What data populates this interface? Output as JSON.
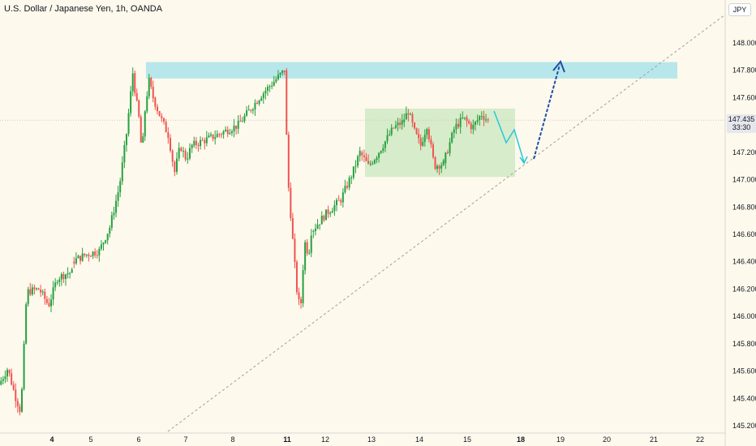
{
  "title": "U.S. Dollar / Japanese Yen, 1h, OANDA",
  "currency": "JPY",
  "last_price": "147.435",
  "countdown": "33:30",
  "colors": {
    "background": "#fdf9ec",
    "up": "#26a040",
    "down": "#ef5350",
    "resistance_zone": "#9fe0ea",
    "range_box": "#cde8c2",
    "path_down": "#26c6da",
    "path_up": "#1e4fa8",
    "trendline": "#9e9e9e"
  },
  "chart_data": {
    "type": "candlestick",
    "y_ticks": [
      "148.000",
      "147.800",
      "147.600",
      "147.400",
      "147.200",
      "147.000",
      "146.800",
      "146.600",
      "146.400",
      "146.200",
      "146.000",
      "145.800",
      "145.600",
      "145.400",
      "145.200"
    ],
    "x_ticks": [
      "4",
      "5",
      "6",
      "7",
      "8",
      "11",
      "12",
      "13",
      "14",
      "15",
      "18",
      "19",
      "20",
      "21",
      "22"
    ],
    "bold_x_ticks": [
      "4",
      "11",
      "18"
    ],
    "ylim": [
      145.18,
      148.22
    ],
    "days": [
      {
        "label": "4",
        "trend": [
          [
            0,
            145.5
          ],
          [
            0.12,
            145.62
          ],
          [
            0.22,
            145.42
          ],
          [
            0.3,
            145.3
          ],
          [
            0.38,
            146.18
          ],
          [
            0.55,
            146.2
          ],
          [
            0.68,
            146.08
          ],
          [
            0.8,
            146.28
          ],
          [
            0.95,
            146.32
          ]
        ]
      },
      {
        "label": "5",
        "trend": [
          [
            0,
            146.4
          ],
          [
            0.22,
            146.45
          ],
          [
            0.45,
            146.48
          ],
          [
            0.62,
            146.65
          ],
          [
            0.78,
            146.95
          ],
          [
            0.9,
            147.35
          ],
          [
            1,
            147.78
          ]
        ]
      },
      {
        "label": "6",
        "trend": [
          [
            0,
            147.78
          ],
          [
            0.15,
            147.6
          ],
          [
            0.3,
            147.45
          ],
          [
            0.45,
            147.18
          ],
          [
            0.62,
            147.55
          ],
          [
            0.8,
            147.72
          ],
          [
            1,
            147.6
          ]
        ]
      },
      {
        "label": "7",
        "trend": [
          [
            0,
            147.6
          ],
          [
            0.2,
            147.45
          ],
          [
            0.4,
            147.32
          ],
          [
            0.55,
            147.05
          ],
          [
            0.7,
            147.25
          ],
          [
            0.85,
            147.15
          ],
          [
            1,
            147.25
          ]
        ]
      },
      {
        "label": "8",
        "trend": [
          [
            0,
            147.25
          ],
          [
            0.25,
            147.32
          ],
          [
            0.5,
            147.4
          ],
          [
            0.75,
            147.62
          ],
          [
            1,
            147.8
          ]
        ]
      },
      {
        "label": "11",
        "trend": [
          [
            0,
            147.8
          ],
          [
            0.05,
            147.45
          ],
          [
            0.15,
            146.95
          ],
          [
            0.35,
            146.45
          ],
          [
            0.48,
            146.15
          ],
          [
            0.6,
            146.05
          ],
          [
            0.75,
            146.55
          ],
          [
            0.9,
            146.45
          ],
          [
            1,
            146.62
          ]
        ]
      },
      {
        "label": "12",
        "trend": [
          [
            0,
            146.62
          ],
          [
            0.3,
            146.75
          ],
          [
            0.6,
            146.85
          ],
          [
            0.85,
            147.05
          ],
          [
            1,
            147.2
          ]
        ]
      },
      {
        "label": "13",
        "trend": [
          [
            0,
            147.2
          ],
          [
            0.2,
            147.1
          ],
          [
            0.4,
            147.18
          ],
          [
            0.6,
            147.28
          ],
          [
            0.8,
            147.38
          ],
          [
            1,
            147.42
          ]
        ]
      },
      {
        "label": "14",
        "trend": [
          [
            0,
            147.42
          ],
          [
            0.15,
            147.5
          ],
          [
            0.3,
            147.35
          ],
          [
            0.45,
            147.25
          ],
          [
            0.6,
            147.4
          ],
          [
            0.78,
            147.1
          ],
          [
            1,
            147.12
          ]
        ]
      },
      {
        "label": "15",
        "trend": [
          [
            0,
            147.12
          ],
          [
            0.25,
            147.38
          ],
          [
            0.45,
            147.45
          ],
          [
            0.65,
            147.38
          ],
          [
            0.85,
            147.48
          ],
          [
            1,
            147.43
          ]
        ]
      }
    ],
    "annotations": {
      "resistance_zone": {
        "x_from": "6",
        "x_to": "21.5",
        "y_from": 147.74,
        "y_to": 147.86
      },
      "range_box": {
        "x_from": "13",
        "x_to": "16",
        "y_from": 147.02,
        "y_to": 147.52
      },
      "current_price_line": 147.435,
      "trendline": {
        "from": [
          "7",
          145.18
        ],
        "to": [
          "22",
          148.18
        ]
      },
      "projected_path_down": [
        [
          "15.6",
          147.45
        ],
        [
          "15.85",
          147.24
        ],
        [
          "16.05",
          147.35
        ],
        [
          "16.3",
          147.12
        ]
      ],
      "projected_path_up": [
        [
          "18.2",
          147.14
        ],
        [
          "19",
          147.83
        ]
      ]
    }
  }
}
